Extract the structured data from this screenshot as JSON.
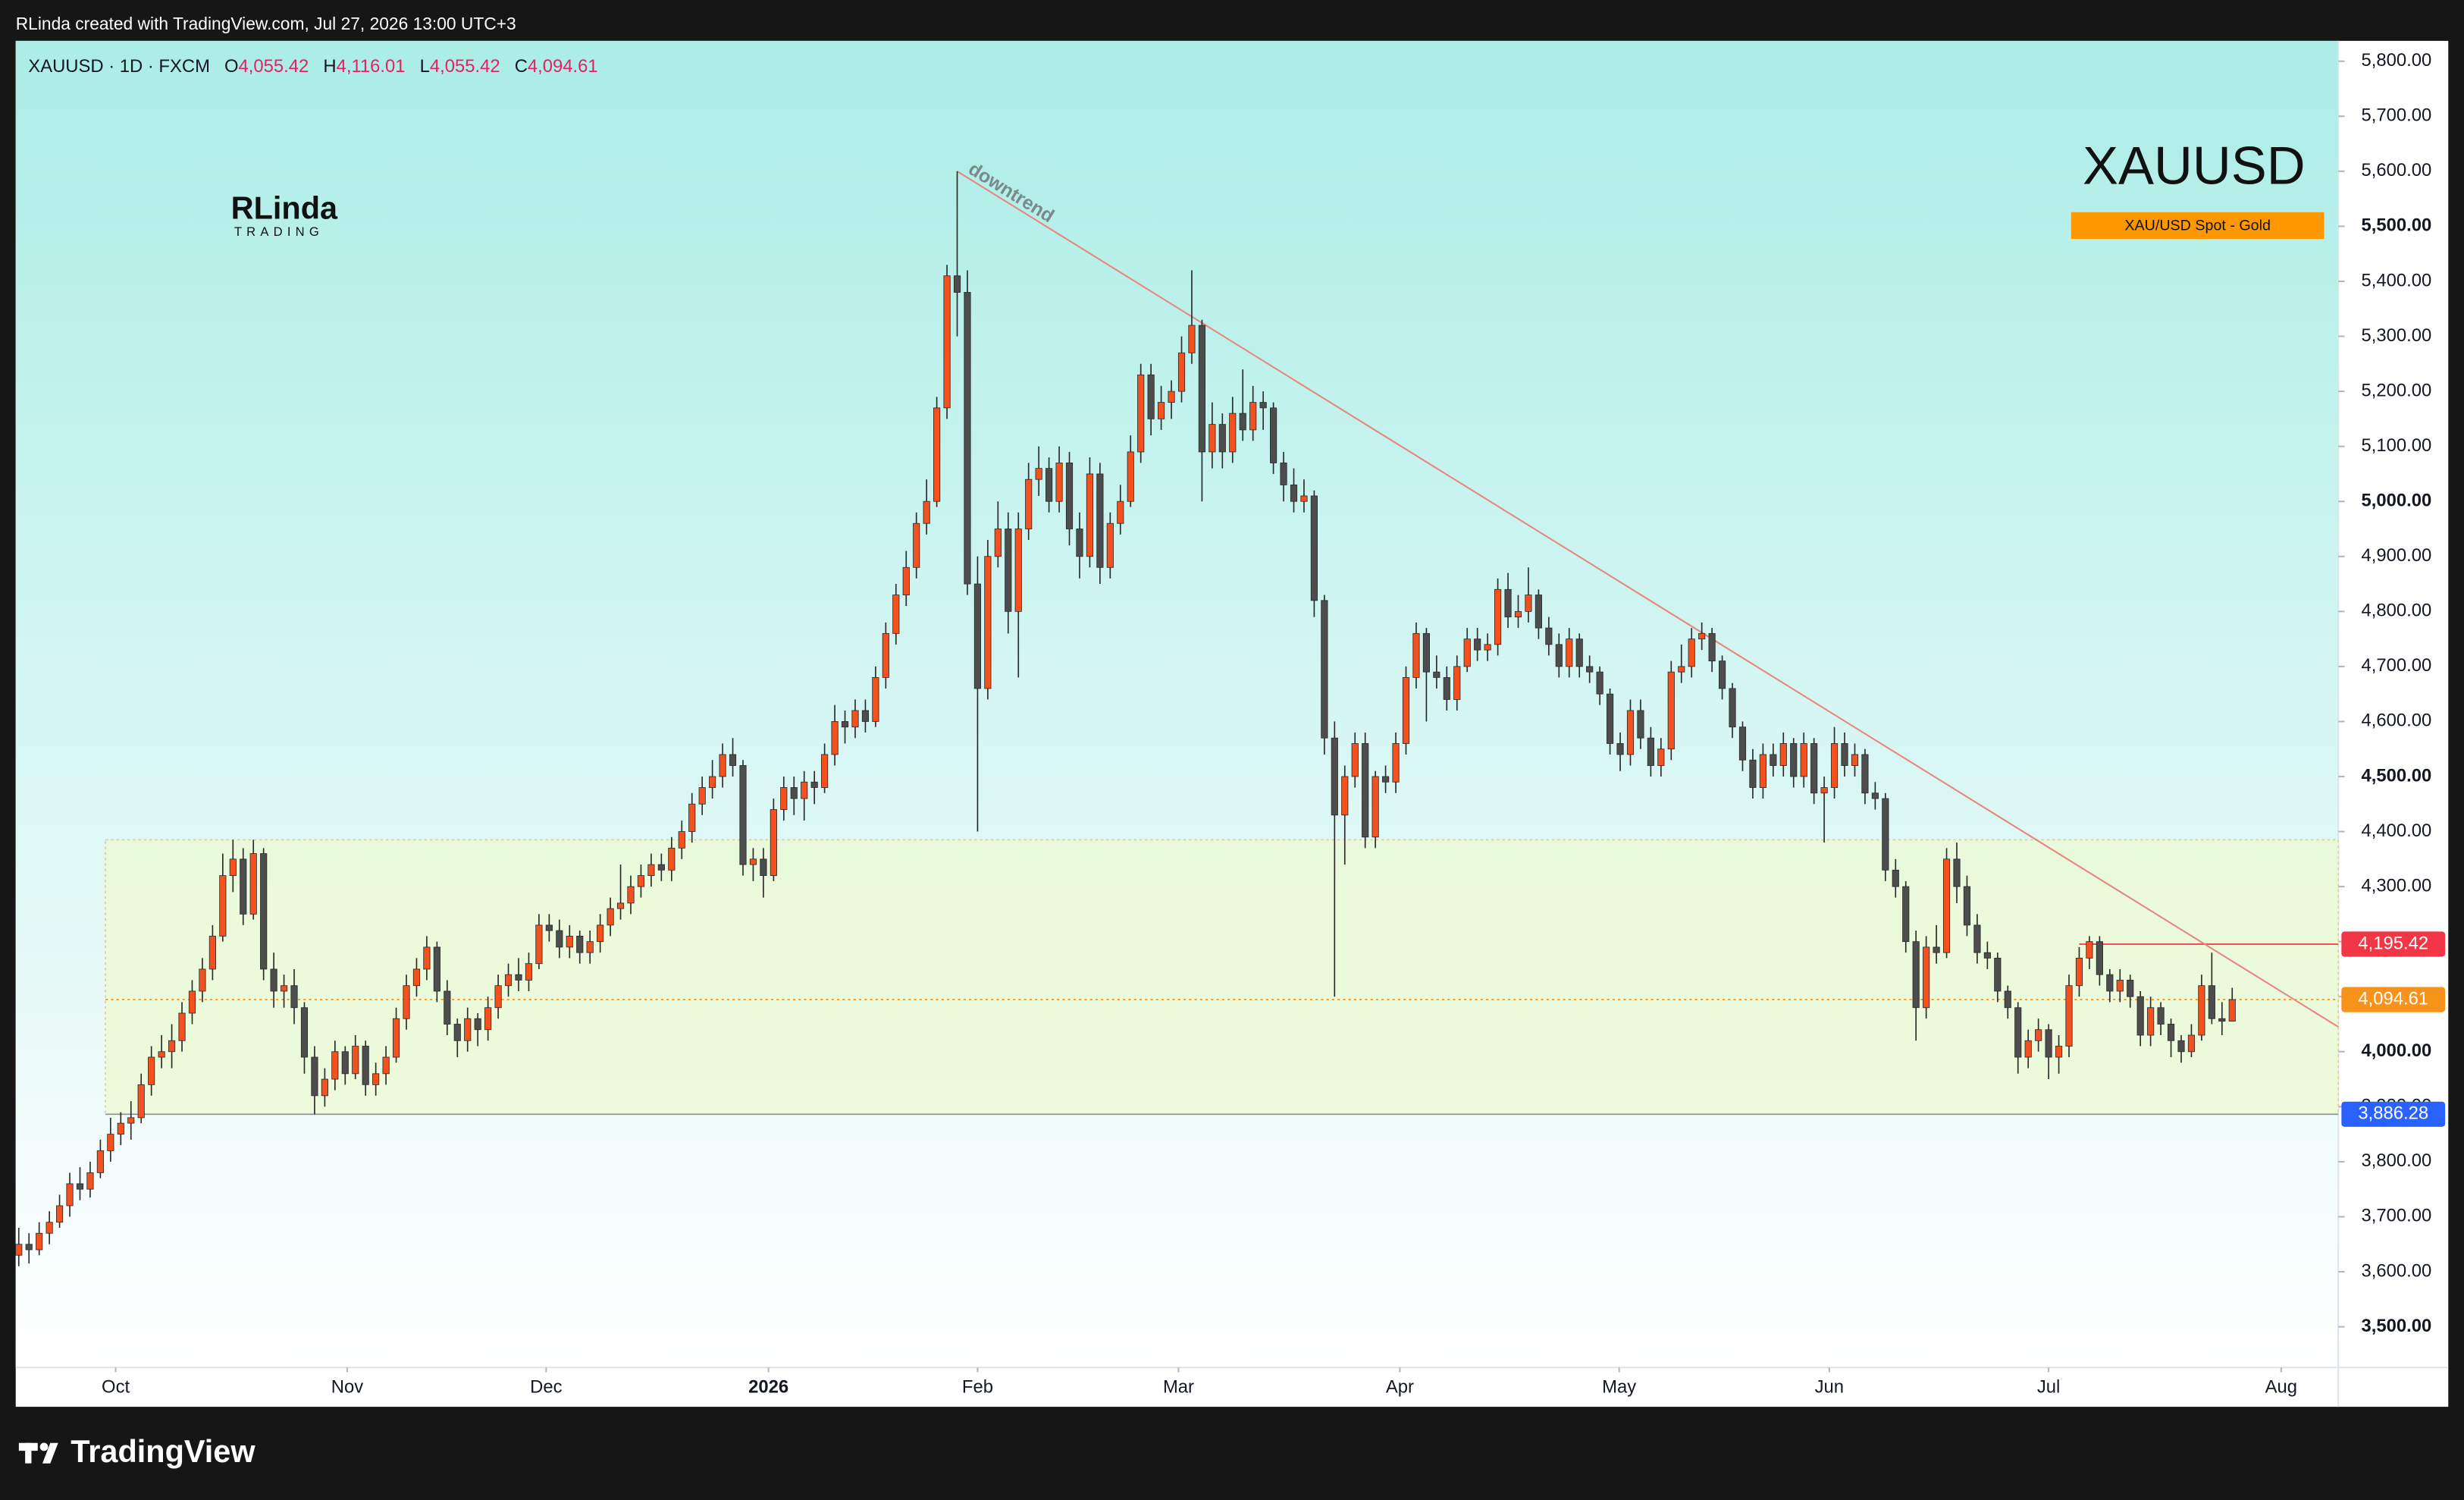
{
  "header": {
    "text": "RLinda created with TradingView.com, Jul 27, 2026 13:00 UTC+3"
  },
  "chart_data": {
    "type": "candlestick",
    "symbol": "XAUUSD · 1D · FXCM",
    "ohlc": [
      {
        "key": "O",
        "value": "4,055.42"
      },
      {
        "key": "H",
        "value": "4,116.01"
      },
      {
        "key": "L",
        "value": "4,055.42"
      },
      {
        "key": "C",
        "value": "4,094.61"
      }
    ],
    "watermark": "XAUUSD",
    "badge": "XAU/USD Spot - Gold",
    "logo": {
      "name": "RLinda",
      "sub": "TRADING"
    },
    "up_color": "#f4511e",
    "down_color": "#4d4d4d",
    "wick_color": "#2b2b2b",
    "candles": [
      [
        3630,
        3680,
        3610,
        3650
      ],
      [
        3650,
        3670,
        3615,
        3640
      ],
      [
        3640,
        3690,
        3630,
        3670
      ],
      [
        3670,
        3710,
        3650,
        3690
      ],
      [
        3690,
        3740,
        3680,
        3720
      ],
      [
        3720,
        3780,
        3700,
        3760
      ],
      [
        3760,
        3790,
        3730,
        3750
      ],
      [
        3750,
        3800,
        3735,
        3780
      ],
      [
        3780,
        3840,
        3770,
        3820
      ],
      [
        3820,
        3880,
        3800,
        3850
      ],
      [
        3850,
        3890,
        3830,
        3870
      ],
      [
        3870,
        3910,
        3840,
        3880
      ],
      [
        3880,
        3960,
        3870,
        3940
      ],
      [
        3940,
        4010,
        3920,
        3990
      ],
      [
        3990,
        4030,
        3970,
        4000
      ],
      [
        4000,
        4050,
        3970,
        4020
      ],
      [
        4020,
        4090,
        4000,
        4070
      ],
      [
        4070,
        4130,
        4050,
        4110
      ],
      [
        4110,
        4170,
        4090,
        4150
      ],
      [
        4150,
        4230,
        4130,
        4210
      ],
      [
        4210,
        4360,
        4200,
        4320
      ],
      [
        4320,
        4385,
        4290,
        4350
      ],
      [
        4350,
        4370,
        4230,
        4250
      ],
      [
        4250,
        4385,
        4240,
        4360
      ],
      [
        4360,
        4370,
        4130,
        4150
      ],
      [
        4150,
        4180,
        4080,
        4110
      ],
      [
        4110,
        4140,
        4080,
        4120
      ],
      [
        4120,
        4150,
        4050,
        4080
      ],
      [
        4080,
        4090,
        3960,
        3990
      ],
      [
        3990,
        4010,
        3886,
        3920
      ],
      [
        3920,
        3970,
        3900,
        3950
      ],
      [
        3950,
        4020,
        3930,
        4000
      ],
      [
        4000,
        4010,
        3940,
        3960
      ],
      [
        3960,
        4030,
        3950,
        4010
      ],
      [
        4010,
        4020,
        3920,
        3940
      ],
      [
        3940,
        3980,
        3920,
        3960
      ],
      [
        3960,
        4010,
        3940,
        3990
      ],
      [
        3990,
        4080,
        3980,
        4060
      ],
      [
        4060,
        4140,
        4040,
        4120
      ],
      [
        4120,
        4170,
        4100,
        4150
      ],
      [
        4150,
        4210,
        4130,
        4190
      ],
      [
        4190,
        4200,
        4090,
        4110
      ],
      [
        4110,
        4130,
        4030,
        4050
      ],
      [
        4050,
        4060,
        3990,
        4020
      ],
      [
        4020,
        4080,
        4000,
        4060
      ],
      [
        4060,
        4070,
        4010,
        4040
      ],
      [
        4040,
        4100,
        4020,
        4080
      ],
      [
        4080,
        4140,
        4060,
        4120
      ],
      [
        4120,
        4160,
        4100,
        4140
      ],
      [
        4140,
        4170,
        4110,
        4130
      ],
      [
        4130,
        4180,
        4110,
        4160
      ],
      [
        4160,
        4250,
        4150,
        4230
      ],
      [
        4230,
        4250,
        4200,
        4220
      ],
      [
        4220,
        4240,
        4170,
        4190
      ],
      [
        4190,
        4230,
        4170,
        4210
      ],
      [
        4210,
        4220,
        4160,
        4180
      ],
      [
        4180,
        4220,
        4160,
        4200
      ],
      [
        4200,
        4250,
        4180,
        4230
      ],
      [
        4230,
        4280,
        4210,
        4260
      ],
      [
        4260,
        4340,
        4240,
        4270
      ],
      [
        4270,
        4320,
        4250,
        4300
      ],
      [
        4300,
        4340,
        4280,
        4320
      ],
      [
        4320,
        4360,
        4300,
        4340
      ],
      [
        4340,
        4360,
        4310,
        4330
      ],
      [
        4330,
        4390,
        4310,
        4370
      ],
      [
        4370,
        4420,
        4350,
        4400
      ],
      [
        4400,
        4470,
        4380,
        4450
      ],
      [
        4450,
        4500,
        4430,
        4480
      ],
      [
        4480,
        4530,
        4460,
        4500
      ],
      [
        4500,
        4560,
        4480,
        4540
      ],
      [
        4540,
        4570,
        4500,
        4520
      ],
      [
        4520,
        4530,
        4320,
        4340
      ],
      [
        4340,
        4370,
        4310,
        4350
      ],
      [
        4350,
        4370,
        4280,
        4320
      ],
      [
        4320,
        4460,
        4310,
        4440
      ],
      [
        4440,
        4500,
        4420,
        4480
      ],
      [
        4480,
        4500,
        4430,
        4460
      ],
      [
        4460,
        4510,
        4420,
        4490
      ],
      [
        4490,
        4510,
        4450,
        4480
      ],
      [
        4480,
        4560,
        4470,
        4540
      ],
      [
        4540,
        4630,
        4520,
        4600
      ],
      [
        4600,
        4620,
        4560,
        4590
      ],
      [
        4590,
        4640,
        4570,
        4620
      ],
      [
        4620,
        4640,
        4580,
        4600
      ],
      [
        4600,
        4700,
        4590,
        4680
      ],
      [
        4680,
        4780,
        4660,
        4760
      ],
      [
        4760,
        4850,
        4740,
        4830
      ],
      [
        4830,
        4910,
        4810,
        4880
      ],
      [
        4880,
        4980,
        4860,
        4960
      ],
      [
        4960,
        5040,
        4940,
        5000
      ],
      [
        5000,
        5190,
        4990,
        5170
      ],
      [
        5170,
        5430,
        5150,
        5410
      ],
      [
        5410,
        5600,
        5300,
        5380
      ],
      [
        5380,
        5420,
        4830,
        4850
      ],
      [
        4850,
        4900,
        4400,
        4660
      ],
      [
        4660,
        4930,
        4640,
        4900
      ],
      [
        4900,
        5000,
        4880,
        4950
      ],
      [
        4950,
        4980,
        4760,
        4800
      ],
      [
        4800,
        4980,
        4680,
        4950
      ],
      [
        4950,
        5070,
        4930,
        5040
      ],
      [
        5040,
        5100,
        5010,
        5060
      ],
      [
        5060,
        5080,
        4980,
        5000
      ],
      [
        5000,
        5100,
        4980,
        5070
      ],
      [
        5070,
        5090,
        4920,
        4950
      ],
      [
        4950,
        4980,
        4860,
        4900
      ],
      [
        4900,
        5080,
        4880,
        5050
      ],
      [
        5050,
        5070,
        4850,
        4880
      ],
      [
        4880,
        4980,
        4860,
        4960
      ],
      [
        4960,
        5030,
        4940,
        5000
      ],
      [
        5000,
        5120,
        4990,
        5090
      ],
      [
        5090,
        5250,
        5070,
        5230
      ],
      [
        5230,
        5250,
        5120,
        5150
      ],
      [
        5150,
        5210,
        5130,
        5180
      ],
      [
        5180,
        5220,
        5150,
        5200
      ],
      [
        5200,
        5300,
        5180,
        5270
      ],
      [
        5270,
        5420,
        5250,
        5320
      ],
      [
        5320,
        5330,
        5000,
        5090
      ],
      [
        5090,
        5180,
        5060,
        5140
      ],
      [
        5140,
        5160,
        5060,
        5090
      ],
      [
        5090,
        5190,
        5070,
        5160
      ],
      [
        5160,
        5240,
        5110,
        5130
      ],
      [
        5130,
        5210,
        5110,
        5180
      ],
      [
        5180,
        5200,
        5130,
        5170
      ],
      [
        5170,
        5180,
        5050,
        5070
      ],
      [
        5070,
        5090,
        5000,
        5030
      ],
      [
        5030,
        5060,
        4980,
        5000
      ],
      [
        5000,
        5040,
        4980,
        5010
      ],
      [
        5010,
        5020,
        4790,
        4820
      ],
      [
        4820,
        4830,
        4540,
        4570
      ],
      [
        4570,
        4600,
        4100,
        4430
      ],
      [
        4430,
        4520,
        4340,
        4500
      ],
      [
        4500,
        4580,
        4480,
        4560
      ],
      [
        4560,
        4580,
        4370,
        4390
      ],
      [
        4390,
        4510,
        4370,
        4500
      ],
      [
        4500,
        4520,
        4470,
        4490
      ],
      [
        4490,
        4580,
        4470,
        4560
      ],
      [
        4560,
        4700,
        4540,
        4680
      ],
      [
        4680,
        4780,
        4660,
        4760
      ],
      [
        4760,
        4770,
        4600,
        4690
      ],
      [
        4690,
        4720,
        4660,
        4680
      ],
      [
        4680,
        4700,
        4620,
        4640
      ],
      [
        4640,
        4720,
        4620,
        4700
      ],
      [
        4700,
        4770,
        4690,
        4750
      ],
      [
        4750,
        4770,
        4710,
        4730
      ],
      [
        4730,
        4760,
        4710,
        4740
      ],
      [
        4740,
        4860,
        4720,
        4840
      ],
      [
        4840,
        4870,
        4770,
        4790
      ],
      [
        4790,
        4830,
        4770,
        4800
      ],
      [
        4800,
        4880,
        4780,
        4830
      ],
      [
        4830,
        4840,
        4750,
        4770
      ],
      [
        4770,
        4790,
        4720,
        4740
      ],
      [
        4740,
        4760,
        4680,
        4700
      ],
      [
        4700,
        4770,
        4680,
        4750
      ],
      [
        4750,
        4760,
        4680,
        4700
      ],
      [
        4700,
        4720,
        4670,
        4690
      ],
      [
        4690,
        4700,
        4630,
        4650
      ],
      [
        4650,
        4660,
        4540,
        4560
      ],
      [
        4560,
        4580,
        4510,
        4540
      ],
      [
        4540,
        4640,
        4520,
        4620
      ],
      [
        4620,
        4640,
        4550,
        4570
      ],
      [
        4570,
        4590,
        4500,
        4520
      ],
      [
        4520,
        4570,
        4500,
        4550
      ],
      [
        4550,
        4710,
        4530,
        4690
      ],
      [
        4690,
        4740,
        4670,
        4700
      ],
      [
        4700,
        4770,
        4680,
        4750
      ],
      [
        4750,
        4780,
        4730,
        4760
      ],
      [
        4760,
        4770,
        4690,
        4710
      ],
      [
        4710,
        4720,
        4640,
        4660
      ],
      [
        4660,
        4670,
        4570,
        4590
      ],
      [
        4590,
        4600,
        4510,
        4530
      ],
      [
        4530,
        4550,
        4460,
        4480
      ],
      [
        4480,
        4560,
        4460,
        4540
      ],
      [
        4540,
        4560,
        4500,
        4520
      ],
      [
        4520,
        4580,
        4500,
        4560
      ],
      [
        4560,
        4570,
        4480,
        4500
      ],
      [
        4500,
        4580,
        4480,
        4560
      ],
      [
        4560,
        4570,
        4450,
        4470
      ],
      [
        4470,
        4500,
        4380,
        4480
      ],
      [
        4480,
        4590,
        4460,
        4560
      ],
      [
        4560,
        4580,
        4500,
        4520
      ],
      [
        4520,
        4560,
        4500,
        4540
      ],
      [
        4540,
        4550,
        4450,
        4470
      ],
      [
        4470,
        4490,
        4440,
        4460
      ],
      [
        4460,
        4470,
        4310,
        4330
      ],
      [
        4330,
        4350,
        4280,
        4300
      ],
      [
        4300,
        4310,
        4180,
        4200
      ],
      [
        4200,
        4220,
        4020,
        4080
      ],
      [
        4080,
        4210,
        4060,
        4190
      ],
      [
        4190,
        4230,
        4160,
        4180
      ],
      [
        4180,
        4370,
        4170,
        4350
      ],
      [
        4350,
        4380,
        4270,
        4300
      ],
      [
        4300,
        4320,
        4210,
        4230
      ],
      [
        4230,
        4250,
        4160,
        4180
      ],
      [
        4180,
        4200,
        4150,
        4170
      ],
      [
        4170,
        4180,
        4090,
        4110
      ],
      [
        4110,
        4120,
        4060,
        4080
      ],
      [
        4080,
        4090,
        3960,
        3990
      ],
      [
        3990,
        4040,
        3970,
        4020
      ],
      [
        4020,
        4060,
        4000,
        4040
      ],
      [
        4040,
        4050,
        3950,
        3990
      ],
      [
        3990,
        4030,
        3960,
        4010
      ],
      [
        4010,
        4140,
        3990,
        4120
      ],
      [
        4120,
        4190,
        4100,
        4170
      ],
      [
        4170,
        4210,
        4150,
        4200
      ],
      [
        4200,
        4210,
        4120,
        4140
      ],
      [
        4140,
        4150,
        4090,
        4110
      ],
      [
        4110,
        4150,
        4090,
        4130
      ],
      [
        4130,
        4140,
        4080,
        4100
      ],
      [
        4100,
        4110,
        4010,
        4030
      ],
      [
        4030,
        4100,
        4010,
        4080
      ],
      [
        4080,
        4090,
        4030,
        4050
      ],
      [
        4050,
        4060,
        3990,
        4020
      ],
      [
        4020,
        4030,
        3980,
        4000
      ],
      [
        4000,
        4050,
        3990,
        4030
      ],
      [
        4030,
        4140,
        4020,
        4120
      ],
      [
        4120,
        4180,
        4050,
        4060
      ],
      [
        4060,
        4090,
        4030,
        4055.42
      ],
      [
        4055.42,
        4116.01,
        4055.42,
        4094.61
      ]
    ],
    "xlim": [
      -0.3,
      227.4
    ],
    "xticks": [
      {
        "value": 9.5,
        "label": "Oct"
      },
      {
        "value": 32.2,
        "label": "Nov"
      },
      {
        "value": 51.7,
        "label": "Dec"
      },
      {
        "value": 73.5,
        "label": "2026"
      },
      {
        "value": 94,
        "label": "Feb"
      },
      {
        "value": 113.7,
        "label": "Mar"
      },
      {
        "value": 135.4,
        "label": "Apr"
      },
      {
        "value": 156.9,
        "label": "May"
      },
      {
        "value": 177.5,
        "label": "Jun"
      },
      {
        "value": 199,
        "label": "Jul"
      },
      {
        "value": 221.8,
        "label": "Aug"
      }
    ],
    "ylim": [
      3426,
      5837
    ],
    "yticks": [
      {
        "value": 3500,
        "label": "3,500.00"
      },
      {
        "value": 3600,
        "label": "3,600.00"
      },
      {
        "value": 3700,
        "label": "3,700.00"
      },
      {
        "value": 3800,
        "label": "3,800.00"
      },
      {
        "value": 3900,
        "label": "3,900.00"
      },
      {
        "value": 4000,
        "label": "4,000.00"
      },
      {
        "value": 4100,
        "label": "4,100.00"
      },
      {
        "value": 4200,
        "label": "4,200.00"
      },
      {
        "value": 4300,
        "label": "4,300.00"
      },
      {
        "value": 4400,
        "label": "4,400.00"
      },
      {
        "value": 4500,
        "label": "4,500.00"
      },
      {
        "value": 4600,
        "label": "4,600.00"
      },
      {
        "value": 4700,
        "label": "4,700.00"
      },
      {
        "value": 4800,
        "label": "4,800.00"
      },
      {
        "value": 4900,
        "label": "4,900.00"
      },
      {
        "value": 5000,
        "label": "5,000.00"
      },
      {
        "value": 5100,
        "label": "5,100.00"
      },
      {
        "value": 5200,
        "label": "5,200.00"
      },
      {
        "value": 5300,
        "label": "5,300.00"
      },
      {
        "value": 5400,
        "label": "5,400.00"
      },
      {
        "value": 5500,
        "label": "5,500.00"
      },
      {
        "value": 5600,
        "label": "5,600.00"
      },
      {
        "value": 5700,
        "label": "5,700.00"
      },
      {
        "value": 5800,
        "label": "5,800.00"
      }
    ],
    "price_labels": [
      {
        "value": 4195.42,
        "label": "4,195.42",
        "color": "#f23645",
        "start": 202,
        "dashed": false
      },
      {
        "value": 4094.61,
        "label": "4,094.61",
        "color": "#f7931a",
        "start": 8.5,
        "dashed": true
      },
      {
        "value": 3886.28,
        "label": "3,886.28",
        "color": "#2962ff",
        "start": 8.5,
        "dashed": false
      }
    ],
    "zone": {
      "start": 8.5,
      "high": 4385,
      "low": 3886.28
    },
    "trendline": {
      "label": "downtrend",
      "start": [
        92,
        5600
      ],
      "end": [
        227.4,
        4045
      ],
      "color": "#e8877f"
    }
  },
  "footer": {
    "brand": "TradingView"
  }
}
